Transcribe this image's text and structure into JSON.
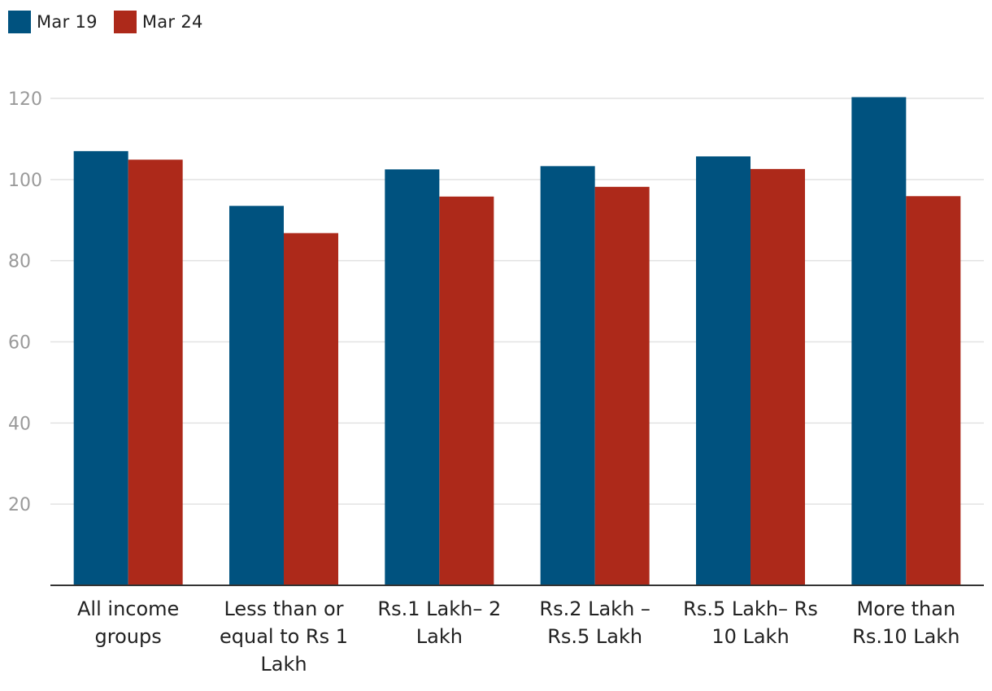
{
  "legend": {
    "items": [
      {
        "label": "Mar 19",
        "color": "#00527f"
      },
      {
        "label": "Mar 24",
        "color": "#ad291a"
      }
    ]
  },
  "chart_data": {
    "type": "bar",
    "categories": [
      "All income groups",
      "Less than or equal to Rs 1 Lakh",
      "Rs.1 Lakh– 2 Lakh",
      "Rs.2 Lakh – Rs.5 Lakh",
      "Rs.5 Lakh– Rs 10 Lakh",
      "More than Rs.10 Lakh"
    ],
    "category_lines": [
      [
        "All income",
        "groups"
      ],
      [
        "Less than or",
        "equal to Rs 1",
        "Lakh"
      ],
      [
        "Rs.1 Lakh– 2",
        "Lakh"
      ],
      [
        "Rs.2 Lakh –",
        "Rs.5 Lakh"
      ],
      [
        "Rs.5 Lakh– Rs",
        "10 Lakh"
      ],
      [
        "More than",
        "Rs.10 Lakh"
      ]
    ],
    "series": [
      {
        "name": "Mar 19",
        "color": "#00527f",
        "values": [
          107,
          93.5,
          102.5,
          103.3,
          105.7,
          120.3
        ]
      },
      {
        "name": "Mar 24",
        "color": "#ad291a",
        "values": [
          104.9,
          86.8,
          95.8,
          98.2,
          102.6,
          95.9
        ]
      }
    ],
    "yticks": [
      20,
      40,
      60,
      80,
      100,
      120
    ],
    "ylim": [
      0,
      124
    ],
    "grid": true,
    "legend_position": "top-left",
    "title": "",
    "xlabel": "",
    "ylabel": ""
  }
}
